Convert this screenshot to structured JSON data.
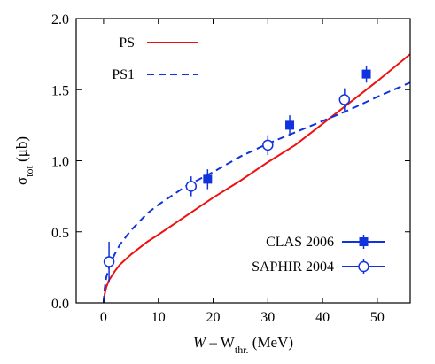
{
  "chart_data": {
    "type": "line",
    "title": "",
    "xlabel": {
      "main": "W – W",
      "sub": "thr.",
      "unit": " (MeV)"
    },
    "ylabel": {
      "main": "σ",
      "sub": "tot",
      "unit": " (μb)"
    },
    "xlim": [
      -5,
      56
    ],
    "ylim": [
      0,
      2.0
    ],
    "xticks": [
      0,
      10,
      20,
      30,
      40,
      50
    ],
    "yticks": [
      0.0,
      0.5,
      1.0,
      1.5,
      2.0
    ],
    "xtick_labels": [
      "0",
      "10",
      "20",
      "30",
      "40",
      "50"
    ],
    "ytick_labels": [
      "0.0",
      "0.5",
      "1.0",
      "1.5",
      "2.0"
    ],
    "grid": false,
    "legend_placement": [
      "top-left",
      "bottom-right"
    ],
    "series": [
      {
        "name": "PS",
        "kind": "curve",
        "style": "solid",
        "color": "#ee1111",
        "x": [
          0,
          0.2,
          0.5,
          1,
          2,
          3,
          5,
          8,
          10,
          15,
          20,
          25,
          30,
          35,
          40,
          45,
          50,
          56
        ],
        "y": [
          0,
          0.06,
          0.11,
          0.16,
          0.22,
          0.27,
          0.34,
          0.43,
          0.48,
          0.61,
          0.74,
          0.86,
          0.99,
          1.11,
          1.26,
          1.41,
          1.56,
          1.75
        ]
      },
      {
        "name": "PS1",
        "kind": "curve",
        "style": "dashed",
        "color": "#1133dd",
        "x": [
          0,
          0.2,
          0.5,
          1,
          2,
          3,
          5,
          8,
          10,
          15,
          20,
          25,
          30,
          35,
          40,
          45,
          50,
          56
        ],
        "y": [
          0,
          0.1,
          0.18,
          0.25,
          0.34,
          0.41,
          0.51,
          0.63,
          0.69,
          0.82,
          0.92,
          1.03,
          1.12,
          1.2,
          1.28,
          1.36,
          1.45,
          1.55
        ]
      },
      {
        "name": "CLAS 2006",
        "kind": "points",
        "marker": "filled-square",
        "color": "#1133dd",
        "x": [
          19,
          34,
          48
        ],
        "y": [
          0.87,
          1.25,
          1.61
        ],
        "err": [
          0.07,
          0.07,
          0.06
        ]
      },
      {
        "name": "SAPHIR 2004",
        "kind": "points",
        "marker": "open-circle",
        "color": "#1133dd",
        "x": [
          1,
          16,
          30,
          44
        ],
        "y": [
          0.29,
          0.82,
          1.11,
          1.43
        ],
        "err": [
          0.14,
          0.07,
          0.07,
          0.08
        ]
      }
    ]
  }
}
